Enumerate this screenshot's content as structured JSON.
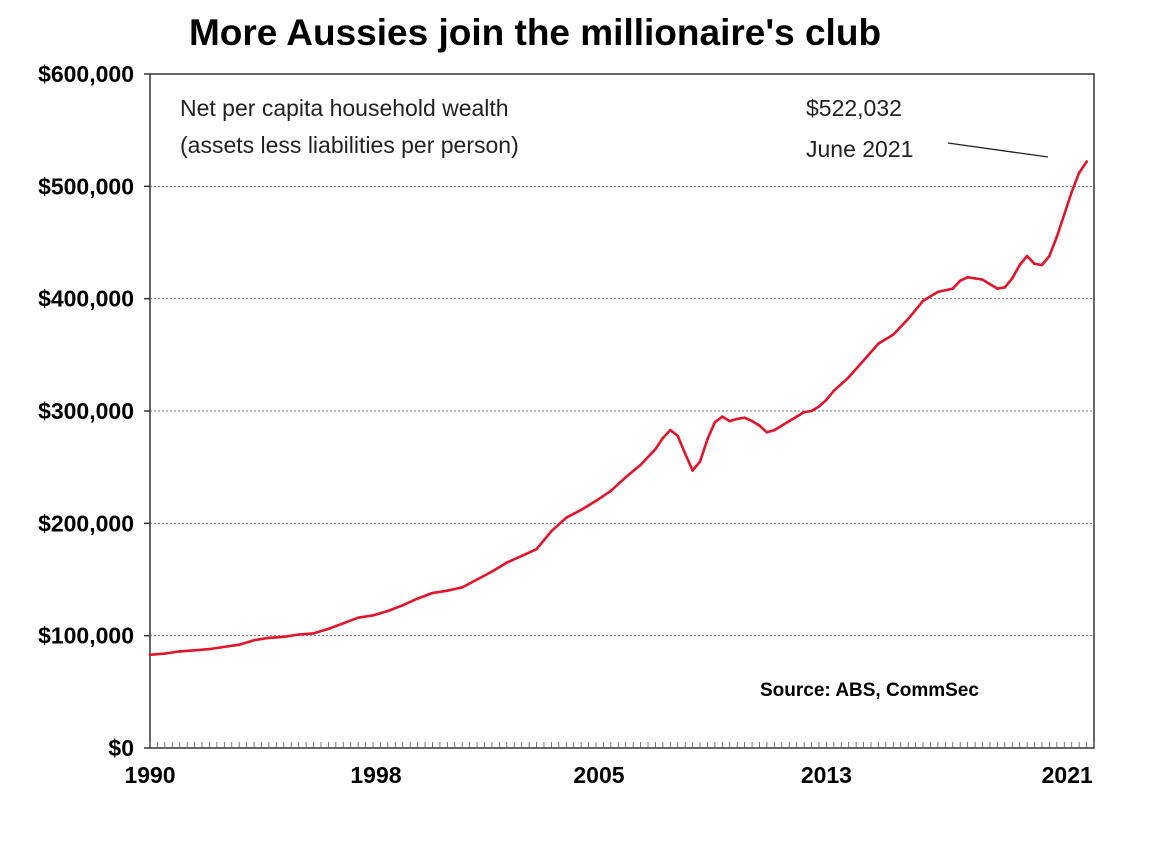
{
  "chart_data": {
    "type": "line",
    "title": "More Aussies join the millionaire's club",
    "subtitle_line1": "Net per capita household wealth",
    "subtitle_line2": "(assets less liabilities per person)",
    "annotation_value": "$522,032",
    "annotation_date": "June 2021",
    "source": "Source: ABS, CommSec",
    "xlabel": "",
    "ylabel": "",
    "ylim": [
      0,
      600000
    ],
    "xlim": [
      1990.0,
      2021.75
    ],
    "grid": true,
    "y_ticks": [
      {
        "value": 0,
        "label": "$0"
      },
      {
        "value": 100000,
        "label": "$100,000"
      },
      {
        "value": 200000,
        "label": "$200,000"
      },
      {
        "value": 300000,
        "label": "$300,000"
      },
      {
        "value": 400000,
        "label": "$400,000"
      },
      {
        "value": 500000,
        "label": "$500,000"
      },
      {
        "value": 600000,
        "label": "$600,000"
      }
    ],
    "x_ticks": [
      {
        "value": 1990.0,
        "label": "1990"
      },
      {
        "value": 1997.6,
        "label": "1998"
      },
      {
        "value": 2005.1,
        "label": "2005"
      },
      {
        "value": 2012.75,
        "label": "2013"
      },
      {
        "value": 2020.85,
        "label": "2021"
      }
    ],
    "series": [
      {
        "color": "#e0142a",
        "x": [
          1990.0,
          1990.5,
          1991.0,
          1991.5,
          1992.0,
          1992.5,
          1993.0,
          1993.5,
          1994.0,
          1994.5,
          1995.0,
          1995.5,
          1996.0,
          1996.5,
          1997.0,
          1997.5,
          1998.0,
          1998.5,
          1999.0,
          1999.5,
          2000.0,
          2000.5,
          2001.0,
          2001.5,
          2002.0,
          2002.5,
          2003.0,
          2003.5,
          2004.0,
          2004.5,
          2005.0,
          2005.5,
          2006.0,
          2006.5,
          2007.0,
          2007.25,
          2007.5,
          2007.75,
          2008.0,
          2008.25,
          2008.5,
          2008.75,
          2009.0,
          2009.25,
          2009.5,
          2009.75,
          2010.0,
          2010.25,
          2010.5,
          2010.75,
          2011.0,
          2011.25,
          2011.5,
          2011.75,
          2012.0,
          2012.25,
          2012.5,
          2012.75,
          2013.0,
          2013.5,
          2014.0,
          2014.5,
          2015.0,
          2015.5,
          2016.0,
          2016.5,
          2017.0,
          2017.25,
          2017.5,
          2017.75,
          2018.0,
          2018.25,
          2018.5,
          2018.75,
          2019.0,
          2019.25,
          2019.5,
          2019.75,
          2020.0,
          2020.25,
          2020.5,
          2020.75,
          2021.0,
          2021.25,
          2021.5
        ],
        "values": [
          83000,
          84000,
          86000,
          87000,
          88000,
          90000,
          92000,
          96000,
          98000,
          99000,
          101000,
          102000,
          106000,
          111000,
          116000,
          118000,
          122000,
          127000,
          133000,
          138000,
          140000,
          143000,
          150000,
          157000,
          165000,
          171000,
          177000,
          193000,
          205000,
          212000,
          220000,
          229000,
          241000,
          252000,
          266000,
          276000,
          283000,
          278000,
          262000,
          247000,
          255000,
          275000,
          290000,
          295000,
          291000,
          293000,
          294000,
          291000,
          287000,
          281000,
          283000,
          287000,
          291000,
          295000,
          299000,
          300000,
          304000,
          310000,
          318000,
          330000,
          345000,
          360000,
          368000,
          382000,
          398000,
          406000,
          409000,
          416000,
          419000,
          418000,
          417000,
          413000,
          409000,
          410000,
          418000,
          430000,
          438000,
          431000,
          430000,
          438000,
          455000,
          475000,
          495000,
          512000,
          522032
        ]
      }
    ]
  }
}
